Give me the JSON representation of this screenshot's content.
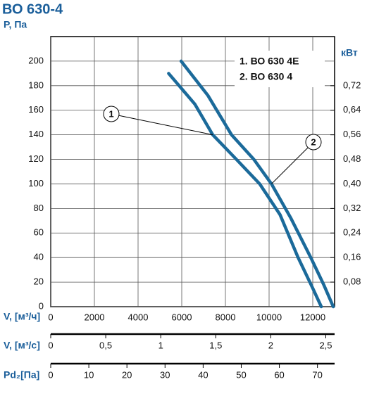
{
  "chart_data": {
    "type": "line",
    "title": "ВО 630-4",
    "ylabel": "P, Па",
    "y2label": "кВт",
    "xlabel": "V, [м³/ч]",
    "xlim": [
      0,
      13000
    ],
    "xticks": [
      0,
      2000,
      4000,
      6000,
      8000,
      10000,
      12000
    ],
    "ylim": [
      0,
      220
    ],
    "yticks": [
      0,
      20,
      40,
      60,
      80,
      100,
      120,
      140,
      160,
      180,
      200
    ],
    "y2lim": [
      0,
      0.88
    ],
    "y2ticks": [
      {
        "value": 0.08,
        "label": "0,08"
      },
      {
        "value": 0.16,
        "label": "0,16"
      },
      {
        "value": 0.24,
        "label": "0,24"
      },
      {
        "value": 0.32,
        "label": "0,32"
      },
      {
        "value": 0.4,
        "label": "0,40"
      },
      {
        "value": 0.48,
        "label": "0,48"
      },
      {
        "value": 0.56,
        "label": "0,56"
      },
      {
        "value": 0.64,
        "label": "0,64"
      },
      {
        "value": 0.72,
        "label": "0,72"
      }
    ],
    "grid": true,
    "series": [
      {
        "name": "1. ВО 630 4Е",
        "marker": "1",
        "color": "#1b6a9a",
        "x": [
          5400,
          6600,
          7420,
          8500,
          9570,
          10500,
          11330,
          12000,
          12390
        ],
        "values": [
          190,
          165,
          140,
          120,
          100,
          75,
          40,
          15,
          0
        ]
      },
      {
        "name": "2. ВО 630 4",
        "marker": "2",
        "color": "#1b6a9a",
        "x": [
          5970,
          7200,
          8280,
          9300,
          10110,
          11000,
          11910,
          12500,
          12940
        ],
        "values": [
          200,
          172,
          140,
          120,
          100,
          72,
          40,
          18,
          0
        ]
      }
    ],
    "extra_axes": [
      {
        "label": "V, [м³/с]",
        "xlim": [
          0,
          2.58
        ],
        "xticks": [
          0,
          {
            "value": 0.5,
            "label": "0,5"
          },
          1,
          {
            "value": 1.5,
            "label": "1,5"
          },
          2,
          {
            "value": 2.5,
            "label": "2,5"
          }
        ]
      },
      {
        "label": "Pd₂[Па]",
        "xlim": [
          0,
          74.5
        ],
        "xticks": [
          0,
          10,
          20,
          30,
          40,
          50,
          60,
          70
        ]
      }
    ]
  }
}
